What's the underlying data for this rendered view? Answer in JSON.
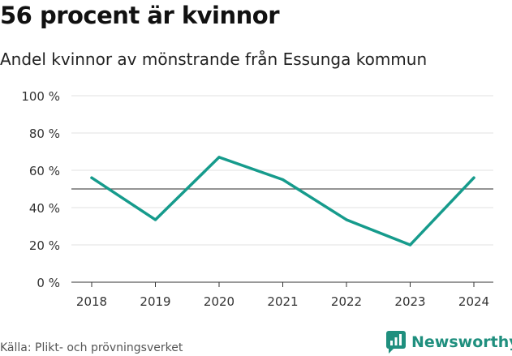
{
  "header": {
    "title": "56 procent är kvinnor",
    "subtitle": "Andel kvinnor av mönstrande från Essunga kommun"
  },
  "footer": {
    "source": "Källa: Plikt- och prövningsverket",
    "brand": "Newsworthy"
  },
  "colors": {
    "line": "#169b8c",
    "reference": "#555555",
    "grid": "#e2e2e2",
    "brand": "#1f8f7e"
  },
  "chart_data": {
    "type": "line",
    "x": [
      "2018",
      "2019",
      "2020",
      "2021",
      "2022",
      "2023",
      "2024"
    ],
    "series": [
      {
        "values": [
          56,
          33.5,
          67,
          55,
          33.5,
          20,
          56
        ]
      }
    ],
    "reference_line": 50,
    "ylim": [
      0,
      100
    ],
    "yticks": [
      0,
      20,
      40,
      60,
      80,
      100
    ],
    "ytick_labels": [
      "0 %",
      "20 %",
      "40 %",
      "60 %",
      "80 %",
      "100 %"
    ],
    "grid": true
  }
}
